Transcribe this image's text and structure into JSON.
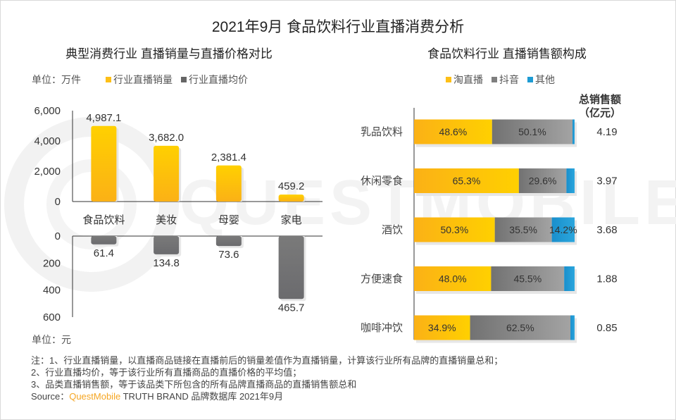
{
  "title": "2021年9月 食品饮料行业直播消费分析",
  "colors": {
    "yellow": "#fdbf17",
    "gray": "#7f7f7f",
    "blue": "#1e9bd3",
    "brand": "#f5a623"
  },
  "watermark": "QUESTMOBILE",
  "chart_data": [
    {
      "type": "bar",
      "title": "典型消费行业 直播销量与直播价格对比",
      "unit_top": "单位：万件",
      "unit_bottom": "单位：元",
      "legend": [
        "行业直播销量",
        "行业直播均价"
      ],
      "categories": [
        "食品饮料",
        "美妆",
        "母婴",
        "家电"
      ],
      "series": [
        {
          "name": "行业直播销量",
          "values": [
            4987.1,
            3682.0,
            2381.4,
            459.2
          ],
          "labels": [
            "4,987.1",
            "3,682.0",
            "2,381.4",
            "459.2"
          ],
          "ylim": [
            0,
            6000
          ],
          "ticks": [
            "6,000",
            "4,000",
            "2,000",
            "0"
          ],
          "tick_values": [
            6000,
            4000,
            2000,
            0
          ]
        },
        {
          "name": "行业直播均价",
          "values": [
            61.4,
            134.8,
            73.6,
            465.7
          ],
          "labels": [
            "61.4",
            "134.8",
            "73.6",
            "465.7"
          ],
          "ylim": [
            0,
            600
          ],
          "ticks": [
            "0",
            "200",
            "400",
            "600"
          ],
          "tick_values": [
            0,
            200,
            400,
            600
          ],
          "inverted": true
        }
      ]
    },
    {
      "type": "bar",
      "orientation": "horizontal",
      "stacked": true,
      "title": "食品饮料行业 直播销售额构成",
      "legend": [
        "淘直播",
        "抖音",
        "其他"
      ],
      "categories": [
        "乳品饮料",
        "休闲零食",
        "酒饮",
        "方便速食",
        "咖啡冲饮"
      ],
      "series": [
        {
          "name": "淘直播",
          "values": [
            48.6,
            65.3,
            50.3,
            48.0,
            34.9
          ],
          "labels": [
            "48.6%",
            "65.3%",
            "50.3%",
            "48.0%",
            "34.9%"
          ]
        },
        {
          "name": "抖音",
          "values": [
            50.1,
            29.6,
            35.5,
            45.5,
            62.5
          ],
          "labels": [
            "50.1%",
            "29.6%",
            "35.5%",
            "45.5%",
            "62.5%"
          ]
        },
        {
          "name": "其他",
          "values": [
            1.3,
            5.1,
            14.2,
            6.5,
            2.6
          ],
          "labels": [
            "",
            "",
            "14.2%",
            "",
            ""
          ]
        }
      ],
      "totals_header": [
        "总销售额",
        "（亿元）"
      ],
      "totals": [
        "4.19",
        "3.97",
        "3.68",
        "1.88",
        "0.85"
      ],
      "xlim": [
        0,
        100
      ]
    }
  ],
  "notes": [
    "注：1、行业直播销量，以直播商品链接在直播前后的销量差值作为直播销量，计算该行业所有品牌的直播销量总和；",
    "2、行业直播均价，等于该行业所有直播商品的直播价格的平均值；",
    "3、品类直播销售额，等于该品类下所包含的所有品牌直播商品的直播销售额总和"
  ],
  "source": {
    "prefix": "Source：",
    "brand": "QuestMobile",
    "rest": " TRUTH BRAND 品牌数据库 2021年9月"
  }
}
